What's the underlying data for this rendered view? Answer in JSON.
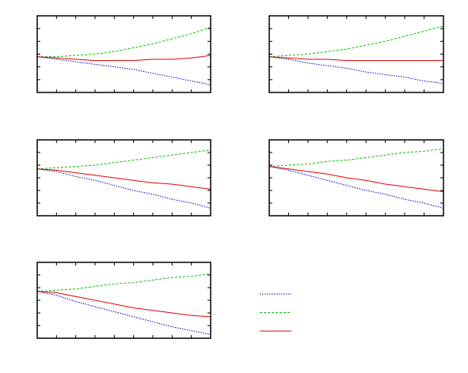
{
  "chart_data": [
    {
      "type": "line",
      "x": [
        0,
        1,
        2,
        3,
        4,
        5,
        6,
        7,
        8,
        9
      ],
      "xlim": [
        0,
        9
      ],
      "xticks": [
        0,
        1,
        2,
        3,
        4,
        5,
        6,
        7,
        8,
        9
      ],
      "ylim": [
        0,
        6
      ],
      "yticks": [
        0,
        1,
        2,
        3,
        4,
        5,
        6
      ],
      "series": [
        {
          "color": "#0000c0",
          "style": "dotted",
          "values": [
            2.8,
            2.6,
            2.4,
            2.2,
            2.0,
            1.8,
            1.5,
            1.2,
            0.9,
            0.6
          ]
        },
        {
          "color": "#00c000",
          "style": "dashed",
          "values": [
            2.8,
            2.8,
            2.9,
            3.0,
            3.2,
            3.5,
            3.8,
            4.2,
            4.6,
            5.1
          ]
        },
        {
          "color": "#e00000",
          "style": "solid",
          "values": [
            2.8,
            2.7,
            2.6,
            2.5,
            2.5,
            2.5,
            2.6,
            2.6,
            2.7,
            2.9
          ]
        }
      ]
    },
    {
      "type": "line",
      "x": [
        0,
        1,
        2,
        3,
        4,
        5,
        6,
        7,
        8,
        9
      ],
      "xlim": [
        0,
        9
      ],
      "xticks": [
        0,
        1,
        2,
        3,
        4,
        5,
        6,
        7,
        8,
        9
      ],
      "ylim": [
        0,
        6
      ],
      "yticks": [
        0,
        1,
        2,
        3,
        4,
        5,
        6
      ],
      "series": [
        {
          "color": "#0000c0",
          "style": "dotted",
          "values": [
            2.8,
            2.6,
            2.3,
            2.1,
            1.9,
            1.6,
            1.4,
            1.2,
            0.9,
            0.7
          ]
        },
        {
          "color": "#00c000",
          "style": "dashed",
          "values": [
            2.8,
            2.9,
            3.0,
            3.2,
            3.4,
            3.7,
            4.0,
            4.4,
            4.8,
            5.2
          ]
        },
        {
          "color": "#e00000",
          "style": "solid",
          "values": [
            2.8,
            2.7,
            2.6,
            2.6,
            2.5,
            2.5,
            2.5,
            2.5,
            2.5,
            2.5
          ]
        }
      ]
    },
    {
      "type": "line",
      "x": [
        0,
        1,
        2,
        3,
        4,
        5,
        6,
        7,
        8,
        9
      ],
      "xlim": [
        0,
        9
      ],
      "xticks": [
        0,
        1,
        2,
        3,
        4,
        5,
        6,
        7,
        8,
        9
      ],
      "ylim": [
        0,
        6
      ],
      "yticks": [
        0,
        1,
        2,
        3,
        4,
        5,
        6
      ],
      "series": [
        {
          "color": "#0000c0",
          "style": "dotted",
          "values": [
            3.7,
            3.5,
            3.1,
            2.8,
            2.4,
            2.0,
            1.7,
            1.3,
            1.0,
            0.6
          ]
        },
        {
          "color": "#00c000",
          "style": "dashed",
          "values": [
            3.7,
            3.8,
            3.9,
            4.0,
            4.2,
            4.4,
            4.6,
            4.8,
            5.0,
            5.2
          ]
        },
        {
          "color": "#e00000",
          "style": "solid",
          "values": [
            3.7,
            3.6,
            3.4,
            3.2,
            3.0,
            2.8,
            2.6,
            2.5,
            2.3,
            2.1
          ]
        }
      ]
    },
    {
      "type": "line",
      "x": [
        0,
        1,
        2,
        3,
        4,
        5,
        6,
        7,
        8,
        9
      ],
      "xlim": [
        0,
        9
      ],
      "xticks": [
        0,
        1,
        2,
        3,
        4,
        5,
        6,
        7,
        8,
        9
      ],
      "ylim": [
        0,
        6
      ],
      "yticks": [
        0,
        1,
        2,
        3,
        4,
        5,
        6
      ],
      "series": [
        {
          "color": "#0000c0",
          "style": "dotted",
          "values": [
            3.9,
            3.6,
            3.2,
            2.8,
            2.4,
            2.0,
            1.7,
            1.3,
            1.0,
            0.6
          ]
        },
        {
          "color": "#00c000",
          "style": "dashed",
          "values": [
            3.9,
            4.0,
            4.1,
            4.3,
            4.4,
            4.6,
            4.8,
            5.0,
            5.1,
            5.3
          ]
        },
        {
          "color": "#e00000",
          "style": "solid",
          "values": [
            3.9,
            3.7,
            3.5,
            3.3,
            3.0,
            2.8,
            2.5,
            2.3,
            2.1,
            1.9
          ]
        }
      ]
    },
    {
      "type": "line",
      "x": [
        0,
        1,
        2,
        3,
        4,
        5,
        6,
        7,
        8,
        9
      ],
      "xlim": [
        0,
        9
      ],
      "xticks": [
        0,
        1,
        2,
        3,
        4,
        5,
        6,
        7,
        8,
        9
      ],
      "ylim": [
        0,
        6
      ],
      "yticks": [
        0,
        1,
        2,
        3,
        4,
        5,
        6
      ],
      "series": [
        {
          "color": "#0000c0",
          "style": "dotted",
          "values": [
            3.7,
            3.4,
            2.9,
            2.5,
            2.1,
            1.7,
            1.3,
            0.9,
            0.6,
            0.3
          ]
        },
        {
          "color": "#00c000",
          "style": "dashed",
          "values": [
            3.7,
            3.8,
            3.9,
            4.1,
            4.3,
            4.4,
            4.6,
            4.8,
            4.9,
            5.1
          ]
        },
        {
          "color": "#e00000",
          "style": "solid",
          "values": [
            3.7,
            3.6,
            3.3,
            3.0,
            2.7,
            2.4,
            2.2,
            2.0,
            1.8,
            1.7
          ]
        }
      ]
    }
  ]
}
